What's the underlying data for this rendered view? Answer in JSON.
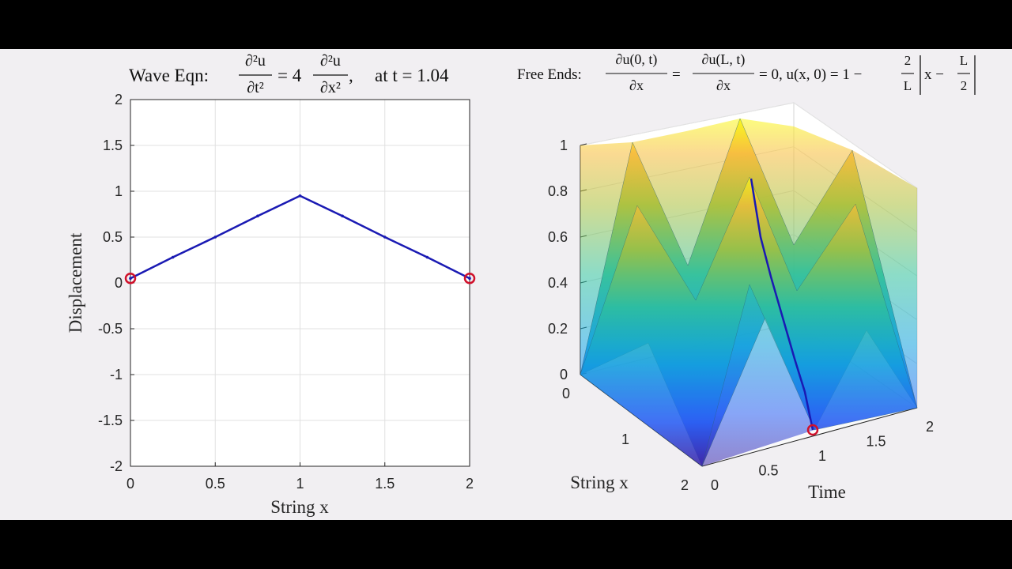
{
  "colors": {
    "background_bar": "#000000",
    "figure_bg": "#f1eff2",
    "line": "#1a1ab3",
    "endpoint": "#d0112b",
    "grid": "#e0e0e0"
  },
  "chart_data": [
    {
      "type": "line",
      "title": {
        "prefix": "Wave Eqn:",
        "d2u": "∂²u",
        "dt2": "∂t²",
        "eq4": "= 4",
        "dx2": "∂x²",
        "comma": ",",
        "time_label": "at t = 1.04"
      },
      "xlabel": "String x",
      "ylabel": "Displacement",
      "xlim": [
        0,
        2
      ],
      "ylim": [
        -2,
        2
      ],
      "xticks": [
        0,
        0.5,
        1,
        1.5,
        2
      ],
      "xtick_labels": [
        "0",
        "0.5",
        "1",
        "1.5",
        "2"
      ],
      "yticks": [
        -2,
        -1.5,
        -1,
        -0.5,
        0,
        0.5,
        1,
        1.5,
        2
      ],
      "ytick_labels": [
        "-2",
        "-1.5",
        "-1",
        "-0.5",
        "0",
        "0.5",
        "1",
        "1.5",
        "2"
      ],
      "grid": true,
      "series": [
        {
          "x": [
            0,
            0.25,
            0.5,
            0.75,
            1.0,
            1.25,
            1.5,
            1.75,
            2.0
          ],
          "y": [
            0.05,
            0.28,
            0.5,
            0.73,
            0.95,
            0.73,
            0.5,
            0.28,
            0.05
          ]
        }
      ],
      "endpoints": [
        {
          "x": 0,
          "y": 0.05
        },
        {
          "x": 2,
          "y": 0.05
        }
      ]
    },
    {
      "type": "surface",
      "title": {
        "prefix": "Free Ends:",
        "du0": "∂u(0, t)",
        "duL": "∂u(L, t)",
        "dx": "∂x",
        "eq": "=",
        "tail": "= 0, u(x, 0) = 1 −",
        "two": "2",
        "L": "L",
        "abs_inner": "x −",
        "Lhalf_num": "L",
        "Lhalf_den": "2"
      },
      "xlabel": "String x",
      "ylabel": "Time",
      "zlim": [
        0,
        1
      ],
      "x_tick_labels": [
        "0",
        "1",
        "2"
      ],
      "t_tick_labels": [
        "0",
        "0.5",
        "1",
        "1.5",
        "2"
      ],
      "z_tick_labels": [
        "0",
        "0.2",
        "0.4",
        "0.6",
        "0.8",
        "1"
      ],
      "current_time": 1.04,
      "L": 2,
      "wave_speed": 2
    }
  ]
}
